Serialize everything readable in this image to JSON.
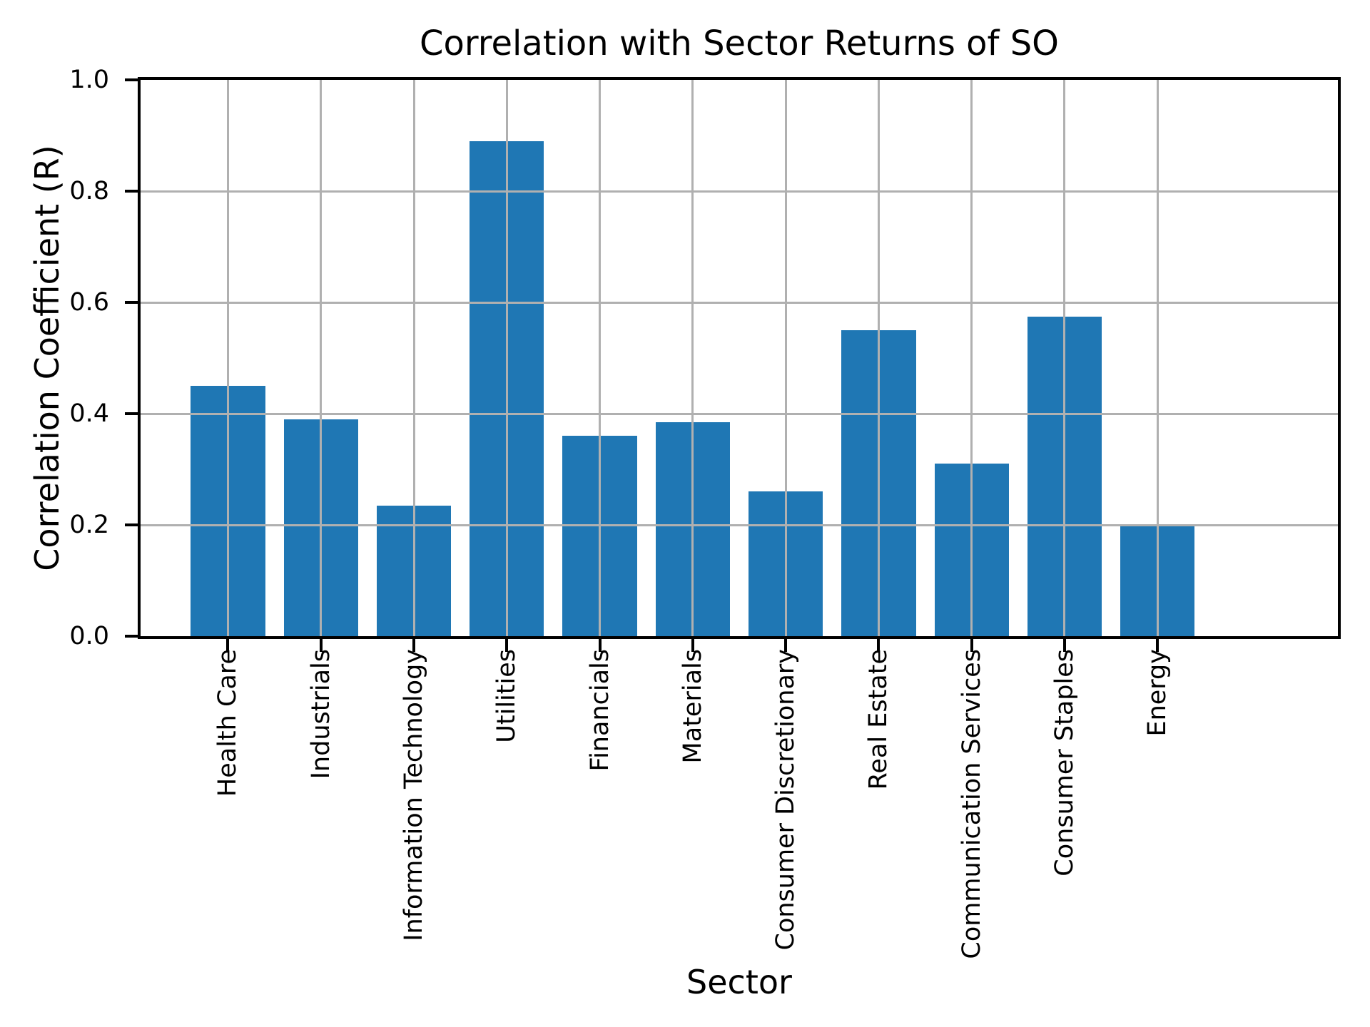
{
  "title": "Correlation with Sector Returns of SO",
  "chart_data": {
    "type": "bar",
    "title": "Correlation with Sector Returns of SO",
    "xlabel": "Sector",
    "ylabel": "Correlation Coefficient (R)",
    "categories": [
      "Health Care",
      "Industrials",
      "Information Technology",
      "Utilities",
      "Financials",
      "Materials",
      "Consumer Discretionary",
      "Real Estate",
      "Communication Services",
      "Consumer Staples",
      "Energy"
    ],
    "values": [
      0.45,
      0.39,
      0.235,
      0.89,
      0.36,
      0.385,
      0.26,
      0.55,
      0.31,
      0.575,
      0.2
    ],
    "ylim": [
      0.0,
      1.0
    ],
    "yticks": [
      0.0,
      0.2,
      0.4,
      0.6,
      0.8,
      1.0
    ],
    "ytick_labels": [
      "0.0",
      "0.2",
      "0.4",
      "0.6",
      "0.8",
      "1.0"
    ],
    "grid": true,
    "legend": "none",
    "bar_color": "#1f77b4",
    "grid_color": "#b0b0b0",
    "spine_color": "#000000",
    "text_color": "#000000",
    "background_color": "#ffffff"
  }
}
